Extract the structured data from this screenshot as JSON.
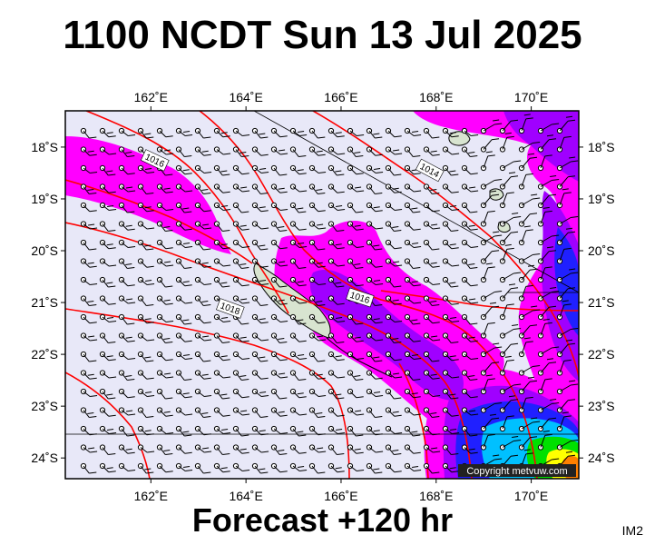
{
  "header": {
    "title": "1100 NCDT Sun 13 Jul 2025"
  },
  "footer": {
    "forecast": "Forecast +120 hr"
  },
  "corner_tag": "IM2",
  "copyright": "Copyright metvuw.com",
  "map": {
    "lon_min": 160.2,
    "lon_max": 171.0,
    "lat_top": -17.3,
    "lat_bottom": -24.4,
    "lon_ticks": [
      162,
      164,
      166,
      168,
      170
    ],
    "lat_ticks": [
      -18,
      -19,
      -20,
      -21,
      -22,
      -23,
      -24
    ],
    "lon_labels": [
      "162˚E",
      "164˚E",
      "166˚E",
      "168˚E",
      "170˚E"
    ],
    "lat_labels": [
      "18˚S",
      "19˚S",
      "20˚S",
      "21˚S",
      "22˚S",
      "23˚S",
      "24˚S"
    ],
    "isobar_labels": [
      "1016",
      "1014",
      "1016",
      "1018"
    ],
    "colors": {
      "background": "#e8e8f8",
      "rain_light": "#ff00ff",
      "rain_mid": "#a000ff",
      "rain_heavy": "#2020ff",
      "rain_very_heavy": "#00c0ff",
      "rain_extreme": "#00e000",
      "isobar": "#ff0000",
      "land": "#d8e4d0"
    }
  }
}
